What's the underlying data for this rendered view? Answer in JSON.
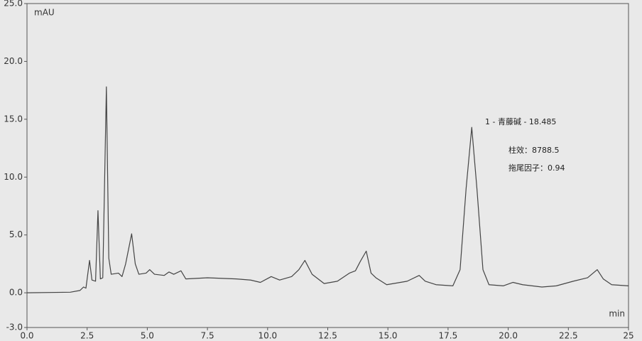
{
  "chart_data": {
    "type": "line",
    "y_axis_label": "mAU",
    "x_axis_label": "min",
    "xlim": [
      0,
      25
    ],
    "ylim": [
      -3,
      25
    ],
    "xticks": [
      {
        "value": 0,
        "label": "0.0"
      },
      2.5,
      {
        "value": 5,
        "label": "5.0"
      },
      7.5,
      {
        "value": 10,
        "label": "10.0"
      },
      12.5,
      {
        "value": 15,
        "label": "15.0"
      },
      17.5,
      {
        "value": 20,
        "label": "20.0"
      },
      22.5,
      25
    ],
    "yticks": [
      {
        "value": -3,
        "label": "-3.0"
      },
      {
        "value": 0,
        "label": "0.0"
      },
      {
        "value": 5,
        "label": "5.0"
      },
      {
        "value": 10,
        "label": "10.0"
      },
      {
        "value": 15,
        "label": "15.0"
      },
      {
        "value": 20,
        "label": "20.0"
      },
      {
        "value": 25,
        "label": "25.0"
      }
    ],
    "grid": false,
    "series": [
      {
        "color": "#444444",
        "x": [
          0,
          1.8,
          2.2,
          2.35,
          2.45,
          2.6,
          2.7,
          2.85,
          2.95,
          3.05,
          3.15,
          3.3,
          3.4,
          3.5,
          3.8,
          3.95,
          4.1,
          4.35,
          4.5,
          4.65,
          4.95,
          5.1,
          5.3,
          5.7,
          5.9,
          6.1,
          6.4,
          6.6,
          7.5,
          8.7,
          9.3,
          9.7,
          10.15,
          10.5,
          11.0,
          11.3,
          11.55,
          11.85,
          12.35,
          12.9,
          13.4,
          13.65,
          13.85,
          14.1,
          14.3,
          14.5,
          14.95,
          15.8,
          16.3,
          16.55,
          17.0,
          17.7,
          18.0,
          18.25,
          18.485,
          18.7,
          18.95,
          19.2,
          19.8,
          20.2,
          20.6,
          21.4,
          22.0,
          22.7,
          23.3,
          23.7,
          23.95,
          24.3,
          25
        ],
        "values": [
          0,
          0.05,
          0.2,
          0.5,
          0.4,
          2.8,
          1.1,
          1.0,
          7.1,
          1.2,
          1.3,
          17.8,
          3.0,
          1.6,
          1.7,
          1.4,
          2.5,
          5.1,
          2.5,
          1.6,
          1.7,
          2.0,
          1.6,
          1.5,
          1.8,
          1.6,
          1.9,
          1.2,
          1.3,
          1.2,
          1.1,
          0.9,
          1.4,
          1.1,
          1.4,
          2.0,
          2.8,
          1.6,
          0.8,
          1.0,
          1.7,
          1.9,
          2.7,
          3.6,
          1.7,
          1.3,
          0.7,
          1.0,
          1.5,
          1.0,
          0.7,
          0.6,
          2.0,
          9.0,
          14.3,
          9.0,
          2.0,
          0.7,
          0.6,
          0.9,
          0.7,
          0.5,
          0.6,
          1.0,
          1.3,
          2.0,
          1.2,
          0.7,
          0.6
        ]
      }
    ],
    "annotations": [
      "1 - 青藤碱 - 18.485",
      "柱效：8788.5",
      "拖尾因子：0.94"
    ]
  }
}
